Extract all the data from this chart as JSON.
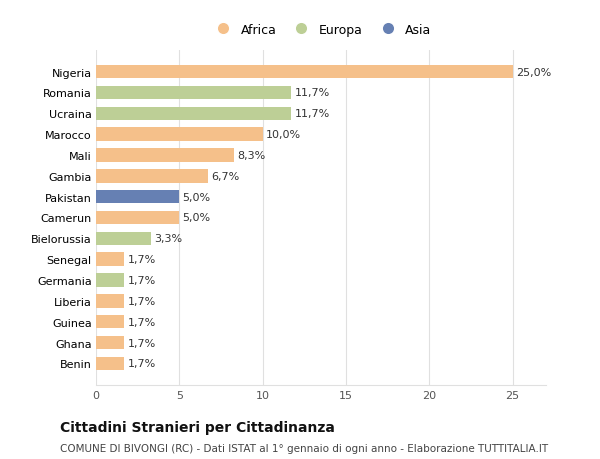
{
  "countries": [
    "Nigeria",
    "Romania",
    "Ucraina",
    "Marocco",
    "Mali",
    "Gambia",
    "Pakistan",
    "Camerun",
    "Bielorussia",
    "Senegal",
    "Germania",
    "Liberia",
    "Guinea",
    "Ghana",
    "Benin"
  ],
  "values": [
    25.0,
    11.7,
    11.7,
    10.0,
    8.3,
    6.7,
    5.0,
    5.0,
    3.3,
    1.7,
    1.7,
    1.7,
    1.7,
    1.7,
    1.7
  ],
  "continents": [
    "Africa",
    "Europa",
    "Europa",
    "Africa",
    "Africa",
    "Africa",
    "Asia",
    "Africa",
    "Europa",
    "Africa",
    "Europa",
    "Africa",
    "Africa",
    "Africa",
    "Africa"
  ],
  "labels": [
    "25,0%",
    "11,7%",
    "11,7%",
    "10,0%",
    "8,3%",
    "6,7%",
    "5,0%",
    "5,0%",
    "3,3%",
    "1,7%",
    "1,7%",
    "1,7%",
    "1,7%",
    "1,7%",
    "1,7%"
  ],
  "colors": {
    "Africa": "#F5C08A",
    "Europa": "#BDCF96",
    "Asia": "#6680B3"
  },
  "legend_order": [
    "Africa",
    "Europa",
    "Asia"
  ],
  "xlim": [
    0,
    27
  ],
  "xticks": [
    0,
    5,
    10,
    15,
    20,
    25
  ],
  "title": "Cittadini Stranieri per Cittadinanza",
  "subtitle": "COMUNE DI BIVONGI (RC) - Dati ISTAT al 1° gennaio di ogni anno - Elaborazione TUTTITALIA.IT",
  "bg_color": "#ffffff",
  "grid_color": "#e0e0e0",
  "bar_height": 0.65,
  "label_fontsize": 8,
  "title_fontsize": 10,
  "subtitle_fontsize": 7.5,
  "ytick_fontsize": 8,
  "xtick_fontsize": 8
}
